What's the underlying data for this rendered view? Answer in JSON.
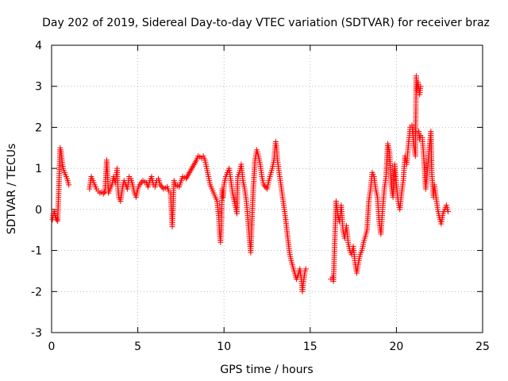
{
  "chart_data": {
    "type": "scatter",
    "title": "Day 202 of 2019, Sidereal Day-to-day VTEC variation (SDTVAR) for receiver braz",
    "xlabel": "GPS time / hours",
    "ylabel": "SDTVAR / TECUs",
    "xlim": [
      0,
      25
    ],
    "ylim": [
      -3,
      4
    ],
    "xticks": [
      0,
      5,
      10,
      15,
      20,
      25
    ],
    "yticks": [
      -3,
      -2,
      -1,
      0,
      1,
      2,
      3,
      4
    ],
    "xtick_labels": [
      "0",
      "5",
      "10",
      "15",
      "20",
      "25"
    ],
    "ytick_labels": [
      "-3",
      "-2",
      "-1",
      "0",
      "1",
      "2",
      "3",
      "4"
    ],
    "grid": true,
    "marker": "+",
    "color": "#ff0000",
    "series": [
      {
        "name": "SDTVAR",
        "points": [
          [
            0.05,
            -0.25
          ],
          [
            0.1,
            -0.1
          ],
          [
            0.15,
            -0.05
          ],
          [
            0.2,
            -0.15
          ],
          [
            0.25,
            -0.2
          ],
          [
            0.3,
            -0.25
          ],
          [
            0.35,
            -0.28
          ],
          [
            0.5,
            1.5
          ],
          [
            0.55,
            1.4
          ],
          [
            0.6,
            1.2
          ],
          [
            0.65,
            1.05
          ],
          [
            0.7,
            0.95
          ],
          [
            0.8,
            0.85
          ],
          [
            0.9,
            0.75
          ],
          [
            1.0,
            0.6
          ],
          [
            2.2,
            0.5
          ],
          [
            2.3,
            0.8
          ],
          [
            2.4,
            0.7
          ],
          [
            2.5,
            0.6
          ],
          [
            2.6,
            0.5
          ],
          [
            2.7,
            0.45
          ],
          [
            2.8,
            0.4
          ],
          [
            2.9,
            0.42
          ],
          [
            3.0,
            0.38
          ],
          [
            3.1,
            0.45
          ],
          [
            3.2,
            1.2
          ],
          [
            3.3,
            0.4
          ],
          [
            3.5,
            0.6
          ],
          [
            3.6,
            0.8
          ],
          [
            3.7,
            0.65
          ],
          [
            3.8,
            1.0
          ],
          [
            3.85,
            0.5
          ],
          [
            3.9,
            0.3
          ],
          [
            4.0,
            0.2
          ],
          [
            4.1,
            0.5
          ],
          [
            4.2,
            0.7
          ],
          [
            4.3,
            0.6
          ],
          [
            4.4,
            0.5
          ],
          [
            4.5,
            0.8
          ],
          [
            4.6,
            0.75
          ],
          [
            4.7,
            0.6
          ],
          [
            4.8,
            0.4
          ],
          [
            4.9,
            0.3
          ],
          [
            5.0,
            0.5
          ],
          [
            5.1,
            0.6
          ],
          [
            5.3,
            0.7
          ],
          [
            5.5,
            0.65
          ],
          [
            5.6,
            0.55
          ],
          [
            5.7,
            0.7
          ],
          [
            5.8,
            0.8
          ],
          [
            5.9,
            0.6
          ],
          [
            6.0,
            0.55
          ],
          [
            6.1,
            0.7
          ],
          [
            6.2,
            0.75
          ],
          [
            6.3,
            0.6
          ],
          [
            6.5,
            0.5
          ],
          [
            6.7,
            0.55
          ],
          [
            6.8,
            0.45
          ],
          [
            6.9,
            0.4
          ],
          [
            7.0,
            -0.42
          ],
          [
            7.1,
            0.7
          ],
          [
            7.2,
            0.6
          ],
          [
            7.4,
            0.55
          ],
          [
            7.6,
            0.8
          ],
          [
            7.8,
            0.75
          ],
          [
            8.0,
            0.9
          ],
          [
            8.2,
            1.05
          ],
          [
            8.4,
            1.2
          ],
          [
            8.5,
            1.3
          ],
          [
            8.6,
            1.28
          ],
          [
            8.7,
            1.25
          ],
          [
            8.8,
            1.3
          ],
          [
            8.9,
            1.2
          ],
          [
            9.0,
            1.0
          ],
          [
            9.1,
            0.8
          ],
          [
            9.2,
            0.6
          ],
          [
            9.3,
            0.5
          ],
          [
            9.4,
            0.4
          ],
          [
            9.6,
            0.2
          ],
          [
            9.7,
            -0.2
          ],
          [
            9.75,
            -0.6
          ],
          [
            9.8,
            -0.8
          ],
          [
            9.85,
            -0.3
          ],
          [
            9.9,
            0.5
          ],
          [
            9.95,
            0.3
          ],
          [
            10.0,
            0.6
          ],
          [
            10.1,
            0.8
          ],
          [
            10.2,
            0.9
          ],
          [
            10.3,
            1.0
          ],
          [
            10.4,
            0.7
          ],
          [
            10.5,
            0.4
          ],
          [
            10.6,
            0.2
          ],
          [
            10.7,
            0.0
          ],
          [
            10.75,
            -0.1
          ],
          [
            10.8,
            0.8
          ],
          [
            10.9,
            0.9
          ],
          [
            11.0,
            1.1
          ],
          [
            11.1,
            0.7
          ],
          [
            11.2,
            0.5
          ],
          [
            11.3,
            0.2
          ],
          [
            11.4,
            -0.3
          ],
          [
            11.5,
            -0.8
          ],
          [
            11.55,
            -1.05
          ],
          [
            11.6,
            -0.5
          ],
          [
            11.7,
            0.5
          ],
          [
            11.8,
            1.2
          ],
          [
            11.9,
            1.45
          ],
          [
            12.0,
            1.3
          ],
          [
            12.1,
            1.1
          ],
          [
            12.2,
            0.8
          ],
          [
            12.3,
            0.6
          ],
          [
            12.5,
            0.5
          ],
          [
            12.6,
            0.7
          ],
          [
            12.8,
            1.0
          ],
          [
            12.9,
            1.2
          ],
          [
            13.0,
            1.65
          ],
          [
            13.05,
            1.5
          ],
          [
            13.1,
            1.2
          ],
          [
            13.2,
            0.9
          ],
          [
            13.3,
            0.6
          ],
          [
            13.4,
            0.3
          ],
          [
            13.5,
            0.0
          ],
          [
            13.55,
            -0.15
          ],
          [
            13.8,
            -1.05
          ],
          [
            13.9,
            -1.25
          ],
          [
            14.0,
            -1.4
          ],
          [
            14.1,
            -1.55
          ],
          [
            14.2,
            -1.7
          ],
          [
            14.3,
            -1.6
          ],
          [
            14.4,
            -1.45
          ],
          [
            14.5,
            -1.75
          ],
          [
            14.55,
            -2.0
          ],
          [
            14.6,
            -1.8
          ],
          [
            14.7,
            -1.5
          ],
          [
            14.75,
            -1.45
          ],
          [
            16.2,
            -1.7
          ],
          [
            16.3,
            -1.65
          ],
          [
            16.35,
            -1.75
          ],
          [
            16.5,
            0.2
          ],
          [
            16.6,
            -0.1
          ],
          [
            16.7,
            -0.3
          ],
          [
            16.8,
            0.1
          ],
          [
            16.9,
            -0.5
          ],
          [
            17.0,
            -0.7
          ],
          [
            17.1,
            -0.4
          ],
          [
            17.2,
            -0.8
          ],
          [
            17.3,
            -1.0
          ],
          [
            17.4,
            -1.1
          ],
          [
            17.5,
            -0.9
          ],
          [
            17.6,
            -1.3
          ],
          [
            17.7,
            -1.55
          ],
          [
            17.8,
            -1.3
          ],
          [
            17.9,
            -1.1
          ],
          [
            18.0,
            -1.0
          ],
          [
            18.1,
            -0.8
          ],
          [
            18.3,
            -0.5
          ],
          [
            18.4,
            0.2
          ],
          [
            18.5,
            0.5
          ],
          [
            18.6,
            0.9
          ],
          [
            18.7,
            0.8
          ],
          [
            18.8,
            0.5
          ],
          [
            18.9,
            0.3
          ],
          [
            19.0,
            -0.3
          ],
          [
            19.1,
            -0.6
          ],
          [
            19.2,
            0.0
          ],
          [
            19.3,
            0.5
          ],
          [
            19.4,
            0.8
          ],
          [
            19.5,
            1.6
          ],
          [
            19.6,
            1.4
          ],
          [
            19.7,
            0.6
          ],
          [
            19.8,
            0.3
          ],
          [
            19.9,
            1.1
          ],
          [
            20.0,
            0.6
          ],
          [
            20.1,
            0.2
          ],
          [
            20.2,
            0.0
          ],
          [
            20.3,
            0.4
          ],
          [
            20.4,
            0.7
          ],
          [
            20.5,
            1.3
          ],
          [
            20.6,
            1.1
          ],
          [
            20.7,
            1.6
          ],
          [
            20.8,
            2.0
          ],
          [
            20.9,
            2.05
          ],
          [
            21.0,
            1.6
          ],
          [
            21.1,
            1.3
          ],
          [
            21.15,
            3.25
          ],
          [
            21.2,
            2.9
          ],
          [
            21.25,
            3.1
          ],
          [
            21.3,
            2.95
          ],
          [
            21.35,
            2.8
          ],
          [
            21.4,
            3.0
          ],
          [
            21.3,
            1.9
          ],
          [
            21.35,
            1.7
          ],
          [
            21.4,
            1.8
          ],
          [
            21.5,
            1.75
          ],
          [
            21.6,
            1.2
          ],
          [
            21.7,
            0.5
          ],
          [
            22.0,
            1.9
          ],
          [
            22.05,
            0.9
          ],
          [
            22.1,
            0.6
          ],
          [
            22.15,
            0.3
          ],
          [
            22.2,
            0.6
          ],
          [
            22.3,
            0.3
          ],
          [
            22.4,
            0.0
          ],
          [
            22.5,
            -0.2
          ],
          [
            22.6,
            -0.35
          ],
          [
            22.7,
            -0.1
          ],
          [
            22.9,
            0.1
          ],
          [
            23.0,
            -0.05
          ]
        ]
      }
    ]
  }
}
